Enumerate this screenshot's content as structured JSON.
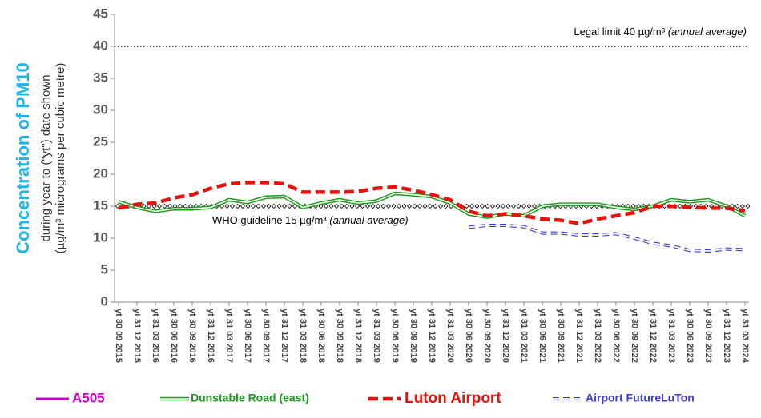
{
  "chart_data": {
    "type": "line",
    "y_label": "Concentration of PM10",
    "y_label_sub": [
      "during year to (\"yt\") date shown",
      "(µg/m³ micrograms per cubic metre)"
    ],
    "categories": [
      "yt 30 09 2015",
      "yt 31 12 2015",
      "yt 31 03 2016",
      "yt 30 06 2016",
      "yt 30 09 2016",
      "yt 31 12 2016",
      "yt 31 03 2017",
      "yt 30 06 2017",
      "yt 30 09 2017",
      "yt 31 12 2017",
      "yt 31 03 2018",
      "yt 30 06 2018",
      "yt 30 09 2018",
      "yt 31 12 2018",
      "yt 31 03 2019",
      "yt 30 06 2019",
      "yt 30 09 2019",
      "yt 31 12 2019",
      "yt 31 03 2020",
      "yt 30 06 2020",
      "yt 30 09 2020",
      "yt 31 12 2020",
      "yt 31 03 2021",
      "yt 30 06 2021",
      "yt 30 09 2021",
      "yt 31 12 2021",
      "yt 31 03 2022",
      "yt 30 06 2022",
      "yt 30 09 2022",
      "yt 31 12 2022",
      "yt 31 03 2023",
      "yt 30 06 2023",
      "yt 30 09 2023",
      "yt 31 12 2023",
      "yt 31 03 2024"
    ],
    "series": [
      {
        "name": "A505",
        "color": "#cc00cc",
        "style": "solid",
        "values": [
          null,
          null,
          null,
          null,
          null,
          null,
          null,
          null,
          null,
          null,
          null,
          null,
          null,
          null,
          null,
          null,
          null,
          null,
          null,
          null,
          null,
          null,
          null,
          null,
          null,
          null,
          null,
          null,
          null,
          null,
          null,
          null,
          null,
          null,
          null
        ]
      },
      {
        "name": "Dunstable Road (east)",
        "color": "#1a9a1a",
        "style": "double",
        "values": [
          15.7,
          14.8,
          14.2,
          14.6,
          14.6,
          14.8,
          16.0,
          15.6,
          16.4,
          16.5,
          14.8,
          15.5,
          16.0,
          15.5,
          15.8,
          17.0,
          16.8,
          16.5,
          15.5,
          13.8,
          13.3,
          13.8,
          13.5,
          15.0,
          15.3,
          15.3,
          15.3,
          14.8,
          14.5,
          15.0,
          16.0,
          15.7,
          16.0,
          15.0,
          13.5
        ]
      },
      {
        "name": "Luton Airport",
        "color": "#e8120c",
        "style": "dashed",
        "values": [
          14.7,
          15.3,
          15.5,
          16.3,
          16.8,
          17.8,
          18.5,
          18.7,
          18.7,
          18.5,
          17.2,
          17.2,
          17.2,
          17.3,
          17.8,
          18.0,
          17.5,
          16.8,
          16.0,
          14.2,
          13.5,
          13.8,
          13.5,
          13.0,
          12.8,
          12.3,
          13.0,
          13.5,
          14.0,
          15.0,
          15.0,
          14.8,
          14.7,
          14.7,
          14.3
        ]
      },
      {
        "name": "Airport FutureLuTon",
        "color": "#3a3ad6",
        "style": "hollow-dash",
        "values": [
          null,
          null,
          null,
          null,
          null,
          null,
          null,
          null,
          null,
          null,
          null,
          null,
          null,
          null,
          null,
          null,
          null,
          null,
          null,
          11.7,
          12.0,
          12.0,
          11.8,
          10.8,
          10.8,
          10.5,
          10.5,
          10.7,
          10.0,
          9.2,
          8.8,
          8.1,
          8.0,
          8.3,
          8.2
        ]
      }
    ],
    "reference_lines": [
      {
        "value": 40,
        "label": "Legal limit 40 µg/m³",
        "note": "(annual average)",
        "style": "dotted"
      },
      {
        "value": 15,
        "label": "WHO guideline 15 µg/m³",
        "note": "(annual average)",
        "style": "diamonds"
      }
    ],
    "ylim": [
      0,
      45
    ],
    "yticks": [
      0,
      5,
      10,
      15,
      20,
      25,
      30,
      35,
      40,
      45
    ],
    "grid": false,
    "legend": "bottom"
  }
}
